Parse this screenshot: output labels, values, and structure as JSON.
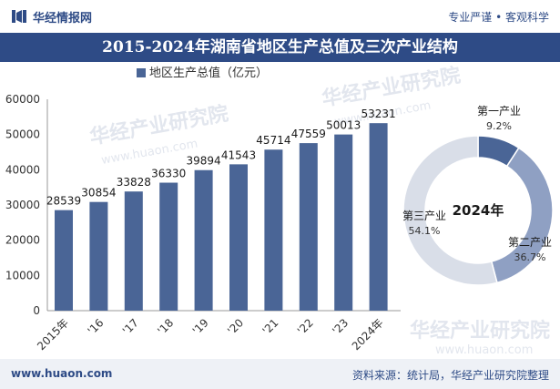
{
  "header": {
    "brand": "华经情报网",
    "slogan": "专业严谨 • 客观科学"
  },
  "title": "2015-2024年湖南省地区生产总值及三次产业结构",
  "watermarks": [
    "华经产业研究院",
    "www.huaon.com"
  ],
  "footer": {
    "url": "www.huaon.com",
    "source": "资料来源：统计局，华经产业研究院整理"
  },
  "colors": {
    "bar": "#4a6596",
    "brand": "#2e4b86",
    "primary": "#4a6596",
    "secondary": "#8fa0c3",
    "tertiary": "#d9dee8"
  },
  "chart_data": [
    {
      "type": "bar",
      "legend": "地区生产总值（亿元）",
      "legend_position": "top-left",
      "categories": [
        "2015年",
        "'16",
        "'17",
        "'18",
        "'19",
        "'20",
        "'21",
        "'22",
        "'23",
        "2024年"
      ],
      "values": [
        28539,
        30854,
        33828,
        36330,
        39894,
        41543,
        45714,
        47559,
        50013,
        53231
      ],
      "y_ticks": [
        "0",
        "10000",
        "20000",
        "30000",
        "40000",
        "50000",
        "60000"
      ],
      "ylim": [
        0,
        60000
      ],
      "grid": false
    },
    {
      "type": "pie",
      "center_label": "2024年",
      "slices": [
        {
          "name": "第一产业",
          "value": 9.2,
          "label": "9.2%"
        },
        {
          "name": "第二产业",
          "value": 36.7,
          "label": "36.7%"
        },
        {
          "name": "第三产业",
          "value": 54.1,
          "label": "54.1%"
        }
      ]
    }
  ]
}
